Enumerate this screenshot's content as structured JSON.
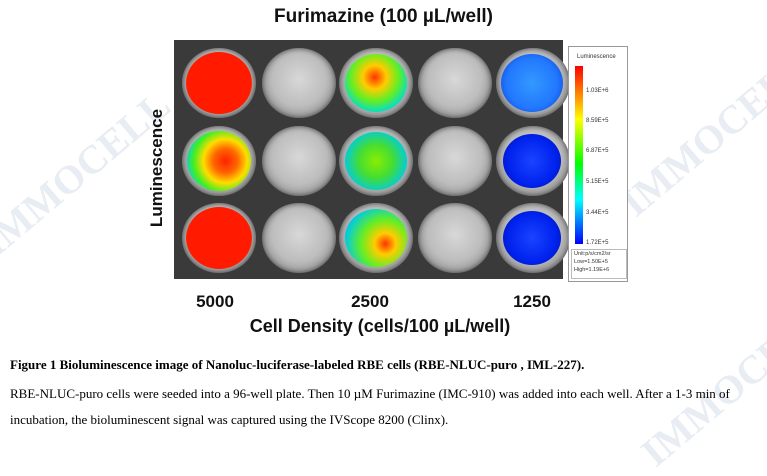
{
  "watermark": "IMMOCELL",
  "figure": {
    "title": "Furimazine (100 µL/well)",
    "y_label": "Luminescence",
    "x_label": "Cell Density (cells/100 µL/well)",
    "x_ticks": [
      "5000",
      "2500",
      "1250"
    ]
  },
  "legend": {
    "title": "Luminescence",
    "ticks": [
      "1.03E+6",
      "8.59E+5",
      "6.87E+5",
      "5.15E+5",
      "3.44E+5",
      "1.72E+5"
    ],
    "unit": "Unit:p/s/cm2/sr",
    "low": "Low=1.50E+5",
    "high": "High=1.19E+6"
  },
  "caption": {
    "title": "Figure 1 Bioluminescence image of Nanoluc-luciferase-labeled RBE cells (RBE-NLUC-puro , IML-227).",
    "body": "RBE-NLUC-puro cells were seeded into a 96-well plate. Then 10  µM Furimazine (IMC-910) was added into each well. After a 1-3 min of incubation, the bioluminescent signal was captured using the IVScope 8200 (Clinx)."
  },
  "colors": {
    "high": "#ff1a00",
    "mid": "#33dd33",
    "low": "#1a6bff"
  }
}
